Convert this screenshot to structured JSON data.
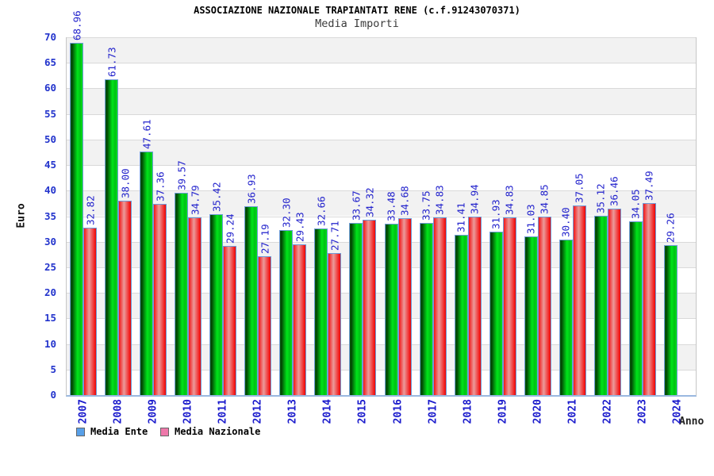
{
  "header": {
    "title": "ASSOCIAZIONE NAZIONALE TRAPIANTATI RENE (c.f.91243070371)",
    "subtitle": "Media Importi"
  },
  "axes": {
    "y_title": "Euro",
    "x_title": "Anno"
  },
  "legend": {
    "position": "bottom-left",
    "items": [
      {
        "label": "Media Ente",
        "swatch_color": "#58a0e8"
      },
      {
        "label": "Media Nazionale",
        "swatch_color": "#ee78aa"
      }
    ]
  },
  "colors": {
    "tick_label_blue": "#2233cc",
    "value_label_blue": "#2222cc",
    "year_label_blue": "#1a1acc",
    "band_gray": "#f2f2f2",
    "band_white": "#ffffff",
    "grid_line": "#d9d9d9",
    "axis_line_blue": "#9ab8e0",
    "bar_border_blue": "#6f9bd8",
    "bar_green_dark": "#033f03",
    "bar_green_bright": "#00e51a",
    "bar_red_edge": "#f31515",
    "bar_red_center": "#eb9b9b"
  },
  "chart_data": {
    "type": "bar",
    "title": "ASSOCIAZIONE NAZIONALE TRAPIANTATI RENE (c.f.91243070371)",
    "subtitle": "Media Importi",
    "xlabel": "Anno",
    "ylabel": "Euro",
    "ylim": [
      0,
      70
    ],
    "y_tick_step": 5,
    "grid": "alternating-horizontal-bands",
    "legend_position": "bottom-left",
    "bar_value_labels": "vertical-above-bar",
    "categories": [
      "2007",
      "2008",
      "2009",
      "2010",
      "2011",
      "2012",
      "2013",
      "2014",
      "2015",
      "2016",
      "2017",
      "2018",
      "2019",
      "2020",
      "2021",
      "2022",
      "2023",
      "2024"
    ],
    "series": [
      {
        "name": "Media Ente",
        "color": "green",
        "values": [
          68.96,
          61.73,
          47.61,
          39.57,
          35.42,
          36.93,
          32.3,
          32.66,
          33.67,
          33.48,
          33.75,
          31.41,
          31.93,
          31.03,
          30.4,
          35.12,
          34.05,
          29.26
        ]
      },
      {
        "name": "Media Nazionale",
        "color": "red",
        "values": [
          32.82,
          38.0,
          37.36,
          34.79,
          29.24,
          27.19,
          29.43,
          27.71,
          34.32,
          34.68,
          34.83,
          34.94,
          34.83,
          34.85,
          37.05,
          36.46,
          37.49,
          null
        ]
      }
    ]
  }
}
